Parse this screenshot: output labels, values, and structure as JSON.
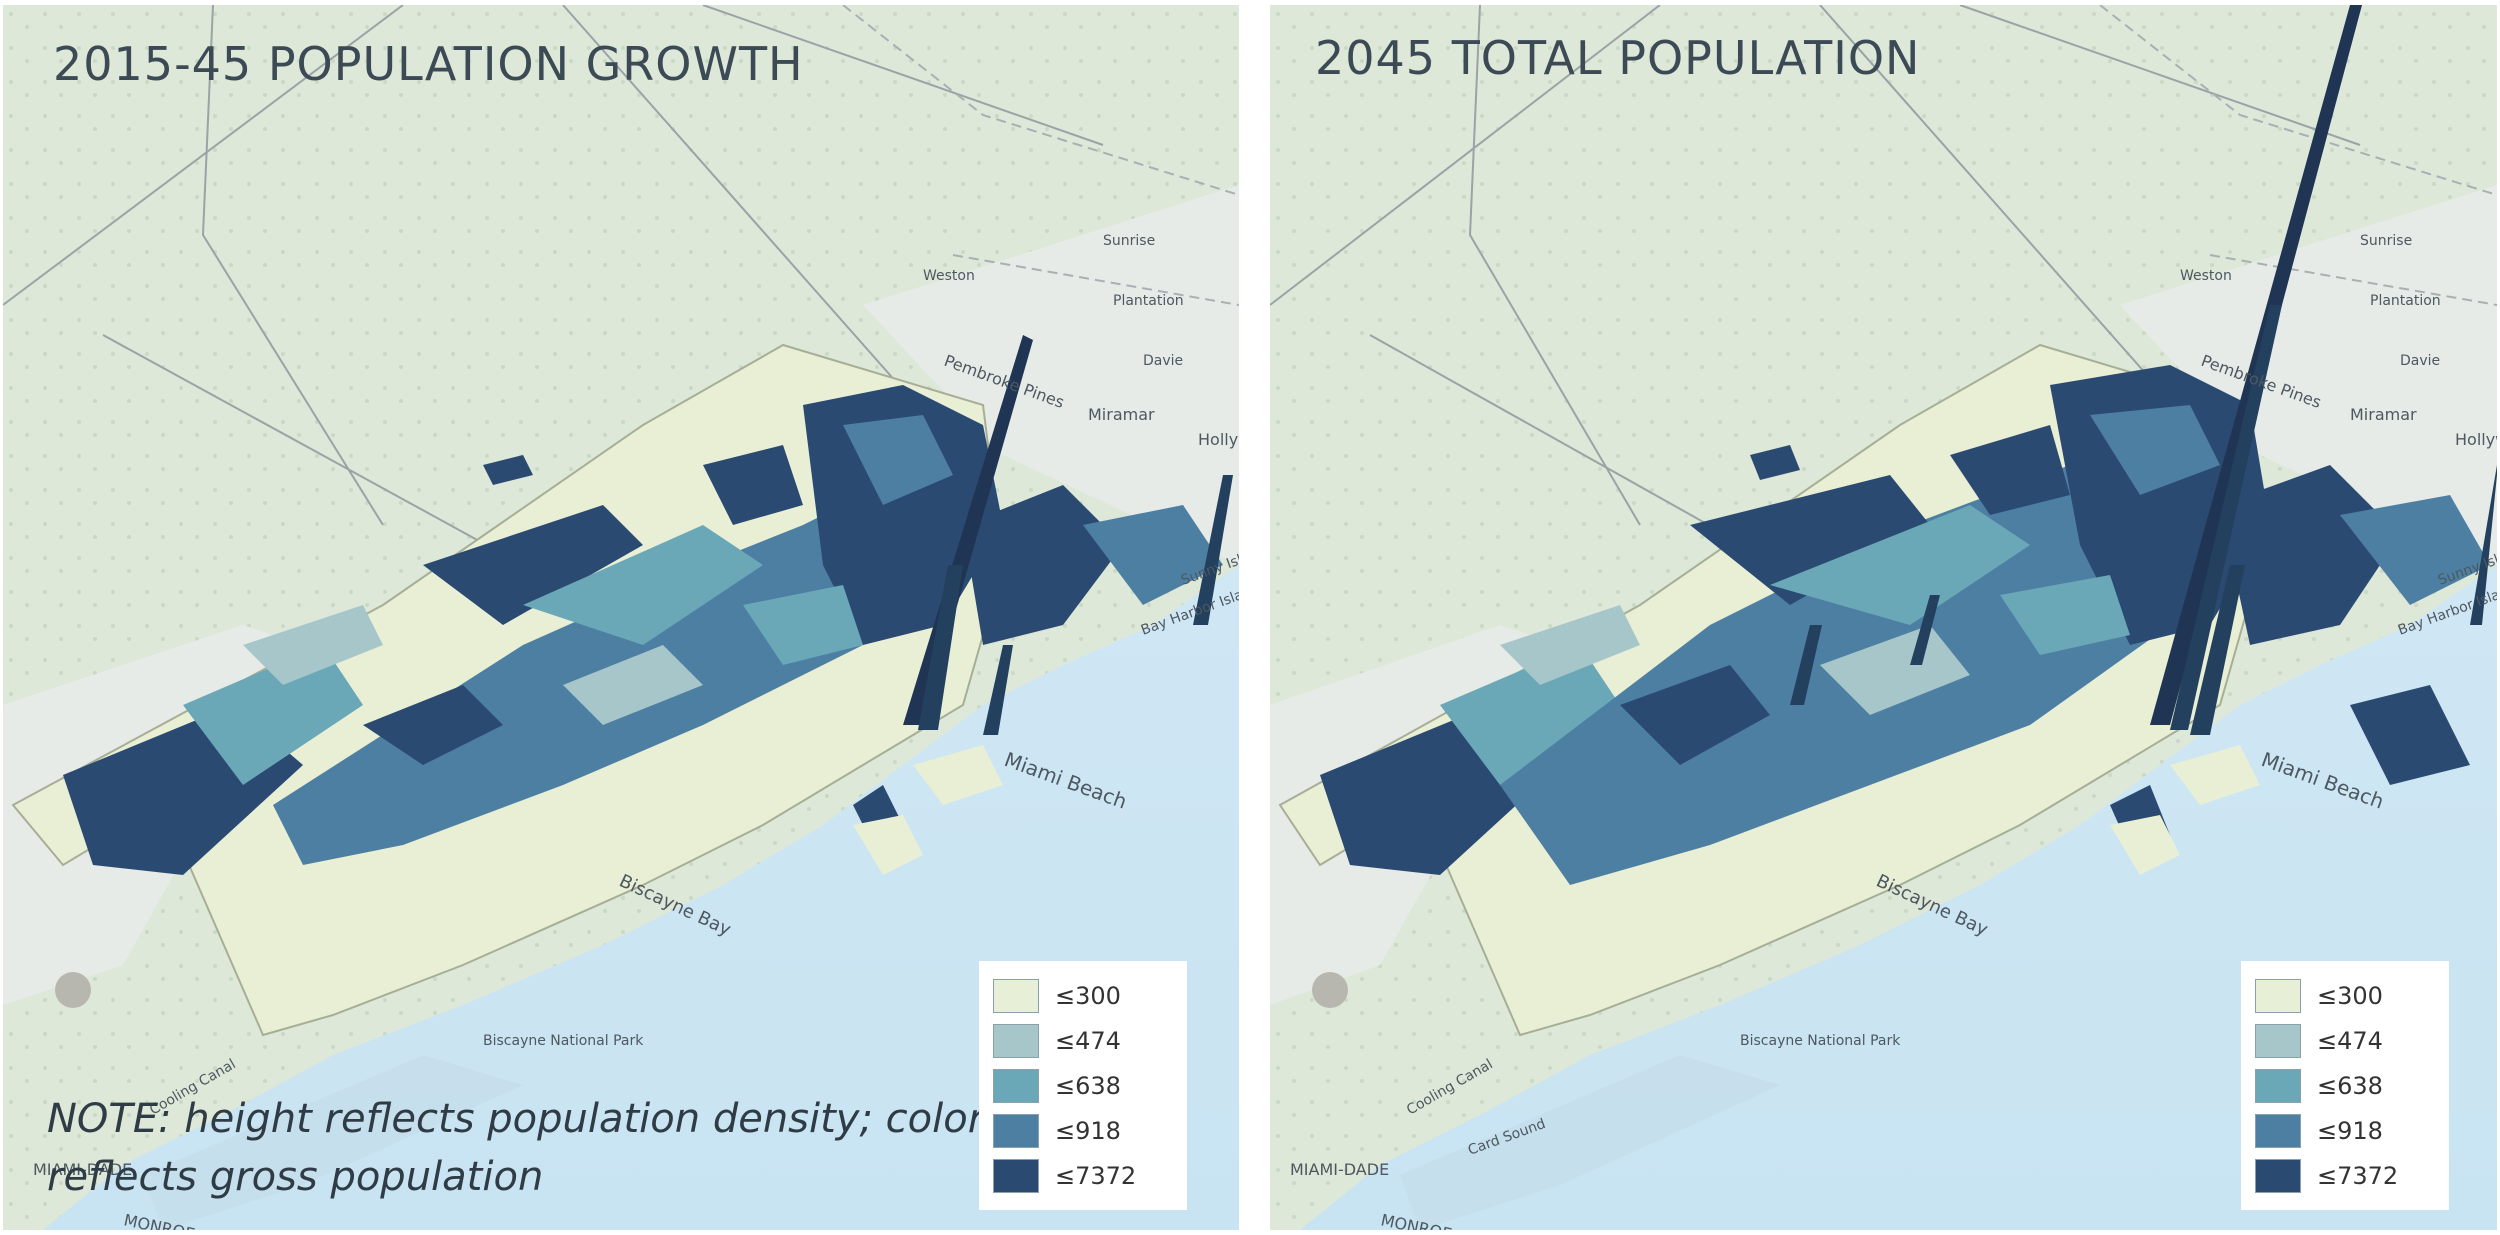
{
  "maps": {
    "left": {
      "title": "2015-45 POPULATION GROWTH",
      "note": "NOTE: height  reflects population density; color reflects gross population"
    },
    "right": {
      "title": "2045 TOTAL POPULATION"
    }
  },
  "legend": {
    "items": [
      {
        "label": "≤300",
        "color": "#e7efd6"
      },
      {
        "label": "≤474",
        "color": "#a6c6c9"
      },
      {
        "label": "≤638",
        "color": "#6aa8b8"
      },
      {
        "label": "≤918",
        "color": "#4d7fa3"
      },
      {
        "label": "≤7372",
        "color": "#2b4a72"
      }
    ]
  },
  "places": {
    "miami_beach": "Miami Beach",
    "biscayne_bay": "Biscayne Bay",
    "biscayne_park": "Biscayne National Park",
    "cooling_canal": "Cooling Canal",
    "card_sound": "Card Sound",
    "miami_dade": "MIAMI-DADE",
    "monroe": "MONROE",
    "pembroke_pines": "Pembroke Pines",
    "miramar": "Miramar",
    "weston": "Weston",
    "plantation": "Plantation",
    "davie": "Davie",
    "sunrise": "Sunrise",
    "hollywood": "Hollyw",
    "bay_harbor": "Bay Harbor Islands",
    "sunny_isles": "Sunny Isles"
  },
  "colors": {
    "water": "#cfe6f3",
    "land": "#dfe9da",
    "urban": "#e8ecea",
    "county": "#e9f0d7"
  }
}
